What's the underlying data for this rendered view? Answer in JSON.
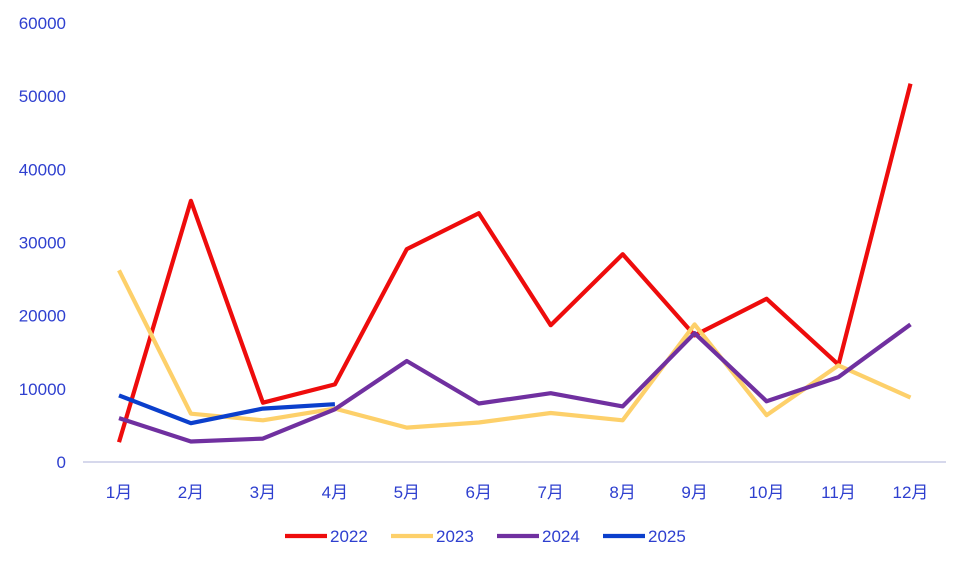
{
  "chart_data": {
    "type": "line",
    "title": "",
    "xlabel": "",
    "ylabel": "",
    "categories": [
      "1月",
      "2月",
      "3月",
      "4月",
      "5月",
      "6月",
      "7月",
      "8月",
      "9月",
      "10月",
      "11月",
      "12月"
    ],
    "ylim": [
      0,
      60000
    ],
    "yticks": [
      0,
      10000,
      20000,
      30000,
      40000,
      50000,
      60000
    ],
    "grid": false,
    "legend_position": "bottom",
    "series": [
      {
        "name": "2022",
        "color": "#ee0c0c",
        "values": [
          2700,
          35700,
          8100,
          10600,
          29100,
          34000,
          18700,
          28400,
          17300,
          22300,
          13300,
          51700
        ]
      },
      {
        "name": "2023",
        "color": "#fdd06a",
        "values": [
          26200,
          6600,
          5700,
          7300,
          4700,
          5400,
          6700,
          5700,
          18800,
          6400,
          13200,
          8800
        ]
      },
      {
        "name": "2024",
        "color": "#7030a0",
        "values": [
          6000,
          2800,
          3200,
          7200,
          13800,
          8000,
          9400,
          7600,
          17600,
          8300,
          11600,
          18800
        ]
      },
      {
        "name": "2025",
        "color": "#0b3fcc",
        "values": [
          9100,
          5300,
          7300,
          7900,
          null,
          null,
          null,
          null,
          null,
          null,
          null,
          null
        ]
      }
    ]
  }
}
